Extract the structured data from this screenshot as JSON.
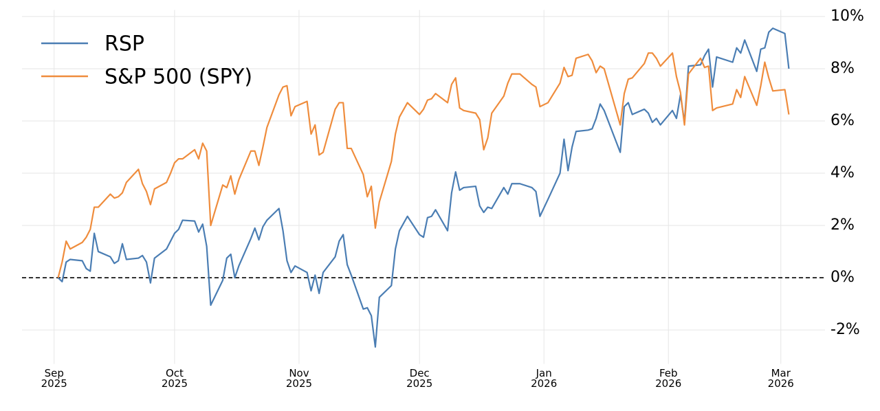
{
  "chart_data": {
    "type": "line",
    "x": [
      "2025-09-02",
      "2025-09-03",
      "2025-09-04",
      "2025-09-05",
      "2025-09-08",
      "2025-09-09",
      "2025-09-10",
      "2025-09-11",
      "2025-09-12",
      "2025-09-15",
      "2025-09-16",
      "2025-09-17",
      "2025-09-18",
      "2025-09-19",
      "2025-09-22",
      "2025-09-23",
      "2025-09-24",
      "2025-09-25",
      "2025-09-26",
      "2025-09-29",
      "2025-09-30",
      "2025-10-01",
      "2025-10-02",
      "2025-10-03",
      "2025-10-06",
      "2025-10-07",
      "2025-10-08",
      "2025-10-09",
      "2025-10-10",
      "2025-10-13",
      "2025-10-14",
      "2025-10-15",
      "2025-10-16",
      "2025-10-17",
      "2025-10-20",
      "2025-10-21",
      "2025-10-22",
      "2025-10-23",
      "2025-10-24",
      "2025-10-27",
      "2025-10-28",
      "2025-10-29",
      "2025-10-30",
      "2025-10-31",
      "2025-11-03",
      "2025-11-04",
      "2025-11-05",
      "2025-11-06",
      "2025-11-07",
      "2025-11-10",
      "2025-11-11",
      "2025-11-12",
      "2025-11-13",
      "2025-11-14",
      "2025-11-17",
      "2025-11-18",
      "2025-11-19",
      "2025-11-20",
      "2025-11-21",
      "2025-11-24",
      "2025-11-25",
      "2025-11-26",
      "2025-11-28",
      "2025-12-01",
      "2025-12-02",
      "2025-12-03",
      "2025-12-04",
      "2025-12-05",
      "2025-12-08",
      "2025-12-09",
      "2025-12-10",
      "2025-12-11",
      "2025-12-12",
      "2025-12-15",
      "2025-12-16",
      "2025-12-17",
      "2025-12-18",
      "2025-12-19",
      "2025-12-22",
      "2025-12-23",
      "2025-12-24",
      "2025-12-26",
      "2025-12-29",
      "2025-12-30",
      "2025-12-31",
      "2026-01-02",
      "2026-01-05",
      "2026-01-06",
      "2026-01-07",
      "2026-01-08",
      "2026-01-09",
      "2026-01-12",
      "2026-01-13",
      "2026-01-14",
      "2026-01-15",
      "2026-01-16",
      "2026-01-20",
      "2026-01-21",
      "2026-01-22",
      "2026-01-23",
      "2026-01-26",
      "2026-01-27",
      "2026-01-28",
      "2026-01-29",
      "2026-01-30",
      "2026-02-02",
      "2026-02-03",
      "2026-02-04",
      "2026-02-05",
      "2026-02-06",
      "2026-02-09",
      "2026-02-10",
      "2026-02-11",
      "2026-02-12",
      "2026-02-13",
      "2026-02-17",
      "2026-02-18",
      "2026-02-19",
      "2026-02-20",
      "2026-02-23",
      "2026-02-24",
      "2026-02-25",
      "2026-02-26",
      "2026-02-27",
      "2026-03-02",
      "2026-03-03"
    ],
    "series": [
      {
        "name": "RSP",
        "color": "#4a7db3",
        "values": [
          0.0,
          -0.15,
          0.6,
          0.7,
          0.65,
          0.35,
          0.25,
          1.7,
          1.0,
          0.8,
          0.55,
          0.65,
          1.3,
          0.7,
          0.75,
          0.85,
          0.6,
          -0.2,
          0.75,
          1.1,
          1.4,
          1.7,
          1.85,
          2.2,
          2.17,
          1.75,
          2.05,
          1.2,
          -1.05,
          -0.1,
          0.75,
          0.9,
          0.0,
          0.45,
          1.5,
          1.9,
          1.45,
          1.95,
          2.2,
          2.65,
          1.8,
          0.65,
          0.2,
          0.45,
          0.2,
          -0.5,
          0.1,
          -0.6,
          0.2,
          0.8,
          1.4,
          1.65,
          0.5,
          0.1,
          -1.2,
          -1.15,
          -1.45,
          -2.65,
          -0.75,
          -0.3,
          1.1,
          1.8,
          2.35,
          1.65,
          1.55,
          2.3,
          2.35,
          2.6,
          1.8,
          3.25,
          4.05,
          3.35,
          3.45,
          3.5,
          2.75,
          2.5,
          2.7,
          2.65,
          3.45,
          3.2,
          3.6,
          3.6,
          3.45,
          3.3,
          2.35,
          3.0,
          4.0,
          5.3,
          4.1,
          5.0,
          5.6,
          5.65,
          5.7,
          6.1,
          6.65,
          6.4,
          4.8,
          6.55,
          6.7,
          6.25,
          6.45,
          6.3,
          5.95,
          6.1,
          5.85,
          6.4,
          6.1,
          7.0,
          5.95,
          8.1,
          8.15,
          8.5,
          8.75,
          7.3,
          8.45,
          8.25,
          8.8,
          8.6,
          9.1,
          7.9,
          8.75,
          8.8,
          9.4,
          9.55,
          9.35,
          8.0
        ]
      },
      {
        "name": "S&P 500 (SPY)",
        "color": "#ef8c3c",
        "values": [
          0.0,
          0.6,
          1.4,
          1.1,
          1.35,
          1.55,
          1.85,
          2.7,
          2.7,
          3.2,
          3.05,
          3.1,
          3.25,
          3.65,
          4.15,
          3.6,
          3.3,
          2.8,
          3.4,
          3.65,
          4.0,
          4.4,
          4.55,
          4.55,
          4.9,
          4.55,
          5.15,
          4.85,
          2.0,
          3.55,
          3.45,
          3.9,
          3.2,
          3.75,
          4.85,
          4.85,
          4.3,
          5.0,
          5.75,
          7.0,
          7.3,
          7.35,
          6.2,
          6.55,
          6.75,
          5.5,
          5.85,
          4.7,
          4.8,
          6.45,
          6.7,
          6.7,
          4.95,
          4.95,
          3.95,
          3.1,
          3.5,
          1.9,
          2.9,
          4.45,
          5.5,
          6.15,
          6.7,
          6.25,
          6.45,
          6.8,
          6.85,
          7.05,
          6.7,
          7.4,
          7.65,
          6.5,
          6.4,
          6.3,
          6.05,
          4.9,
          5.35,
          6.3,
          6.95,
          7.45,
          7.8,
          7.8,
          7.4,
          7.3,
          6.55,
          6.7,
          7.45,
          8.05,
          7.7,
          7.75,
          8.4,
          8.55,
          8.3,
          7.85,
          8.1,
          8.0,
          5.85,
          7.05,
          7.6,
          7.65,
          8.2,
          8.6,
          8.6,
          8.4,
          8.1,
          8.6,
          7.7,
          7.1,
          5.85,
          7.8,
          8.4,
          8.05,
          8.1,
          6.4,
          6.5,
          6.65,
          7.2,
          6.9,
          7.7,
          6.6,
          7.35,
          8.25,
          7.65,
          7.15,
          7.2,
          6.25
        ]
      }
    ],
    "xlim": [
      "2025-08-24",
      "2026-03-12"
    ],
    "xticks": [
      {
        "value": "2025-09-01",
        "label": "Sep\n2025"
      },
      {
        "value": "2025-10-01",
        "label": "Oct\n2025"
      },
      {
        "value": "2025-11-01",
        "label": "Nov\n2025"
      },
      {
        "value": "2025-12-01",
        "label": "Dec\n2025"
      },
      {
        "value": "2026-01-01",
        "label": "Jan\n2026"
      },
      {
        "value": "2026-02-01",
        "label": "Feb\n2026"
      },
      {
        "value": "2026-03-01",
        "label": "Mar\n2026"
      }
    ],
    "ylim": [
      -3.3,
      10.25
    ],
    "yticks": [
      {
        "value": -2,
        "label": "-2%"
      },
      {
        "value": 0,
        "label": "0%"
      },
      {
        "value": 2,
        "label": "2%"
      },
      {
        "value": 4,
        "label": "4%"
      },
      {
        "value": 6,
        "label": "6%"
      },
      {
        "value": 8,
        "label": "8%"
      },
      {
        "value": 10,
        "label": "10%"
      }
    ],
    "reference_line": 0,
    "grid": true,
    "legend": "upper left"
  }
}
